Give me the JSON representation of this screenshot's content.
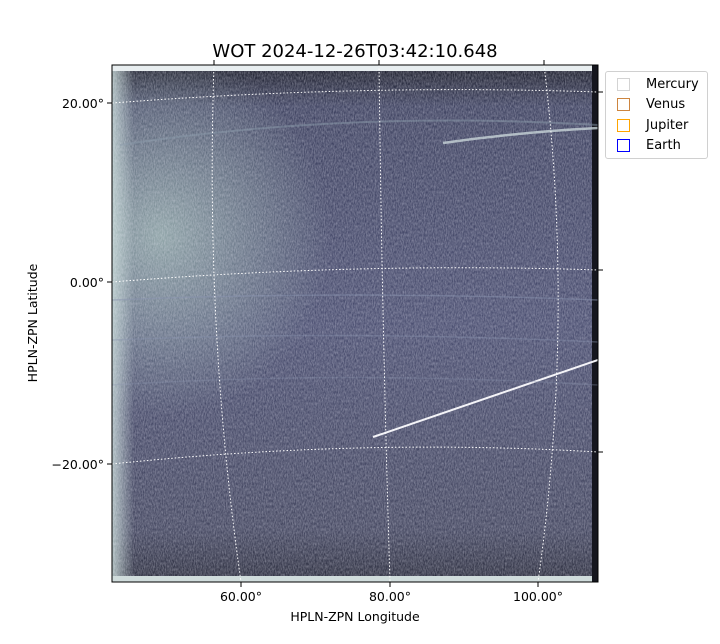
{
  "chart_data": {
    "type": "image",
    "title": "WOT 2024-12-26T03:42:10.648",
    "xlabel": "HPLN-ZPN Longitude",
    "ylabel": "HPLN-ZPN Latitude",
    "x_ticks": [
      "60.00°",
      "80.00°",
      "100.00°"
    ],
    "y_ticks": [
      "20.00°",
      "0.00°",
      "−20.00°"
    ],
    "grid": true,
    "colormap": "bone-like (dark blue-gray to white)",
    "legend": {
      "placement": "outside-top-right",
      "entries": [
        {
          "name": "Mercury",
          "color": "#d3d3d3"
        },
        {
          "name": "Venus",
          "color": "#cd853f"
        },
        {
          "name": "Jupiter",
          "color": "#ffa500"
        },
        {
          "name": "Earth",
          "color": "#0000ff"
        }
      ]
    }
  }
}
